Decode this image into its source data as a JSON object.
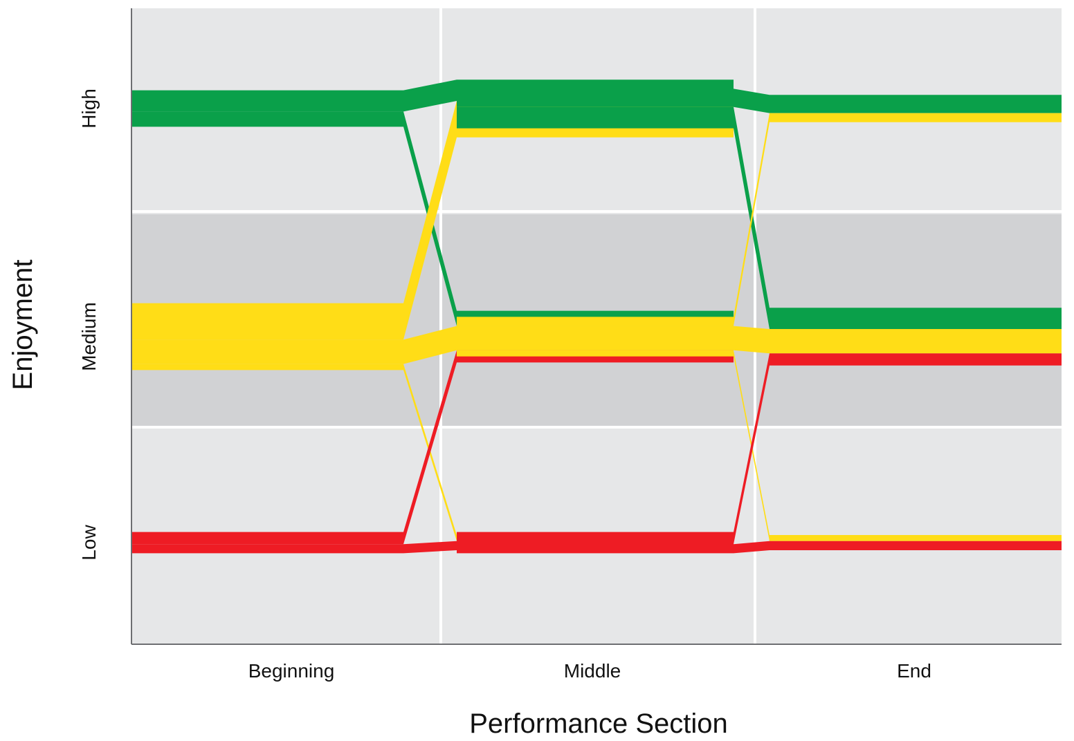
{
  "chart_data": {
    "type": "alluvial",
    "title": "",
    "xlabel": "Performance Section",
    "ylabel": "Enjoyment",
    "categories": [
      "Beginning",
      "Middle",
      "End"
    ],
    "levels": [
      "Low",
      "Medium",
      "High"
    ],
    "grid": true,
    "legend": "none",
    "background_color": "#e6e7e8",
    "medium_band_color": "#d1d2d4",
    "colors": {
      "High": "#0aa04a",
      "Medium": "#ffdd17",
      "Low": "#ee1c24"
    },
    "flows": [
      {
        "from_section": "Beginning",
        "from_level": "High",
        "to_section": "Middle",
        "to_level": "High",
        "value": 7
      },
      {
        "from_section": "Beginning",
        "from_level": "High",
        "to_section": "Middle",
        "to_level": "Medium",
        "value": 5
      },
      {
        "from_section": "Beginning",
        "from_level": "Medium",
        "to_section": "Middle",
        "to_level": "High",
        "value": 12
      },
      {
        "from_section": "Beginning",
        "from_level": "Medium",
        "to_section": "Middle",
        "to_level": "Medium",
        "value": 8
      },
      {
        "from_section": "Beginning",
        "from_level": "Medium",
        "to_section": "Middle",
        "to_level": "Low",
        "value": 2
      },
      {
        "from_section": "Beginning",
        "from_level": "Low",
        "to_section": "Middle",
        "to_level": "Medium",
        "value": 4
      },
      {
        "from_section": "Beginning",
        "from_level": "Low",
        "to_section": "Middle",
        "to_level": "Low",
        "value": 3
      },
      {
        "from_section": "Middle",
        "from_level": "High",
        "to_section": "End",
        "to_level": "High",
        "value": 6
      },
      {
        "from_section": "Middle",
        "from_level": "High",
        "to_section": "End",
        "to_level": "Medium",
        "value": 7
      },
      {
        "from_section": "Middle",
        "from_level": "Medium",
        "to_section": "End",
        "to_level": "High",
        "value": 3
      },
      {
        "from_section": "Middle",
        "from_level": "Medium",
        "to_section": "End",
        "to_level": "Medium",
        "value": 8
      },
      {
        "from_section": "Middle",
        "from_level": "Medium",
        "to_section": "End",
        "to_level": "Low",
        "value": 2
      },
      {
        "from_section": "Middle",
        "from_level": "Low",
        "to_section": "End",
        "to_level": "Medium",
        "value": 4
      },
      {
        "from_section": "Middle",
        "from_level": "Low",
        "to_section": "End",
        "to_level": "Low",
        "value": 3
      }
    ]
  }
}
